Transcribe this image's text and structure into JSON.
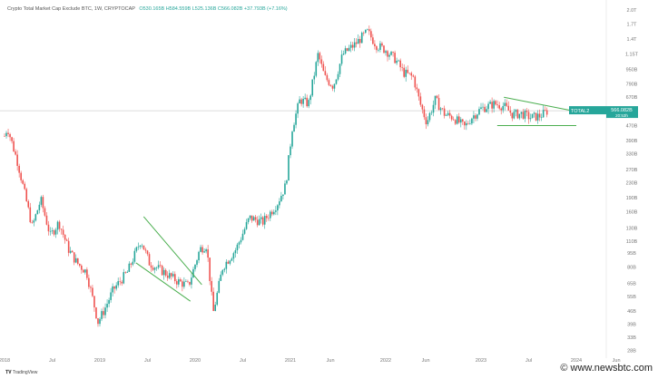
{
  "header": {
    "title": "Crypto Total Market Cap Exclude BTC, 1W, CRYPTOCAP",
    "ohlc": "O530.165B H584.559B L525.136B C566.082B +37.793B (+7.16%)"
  },
  "price_badge": {
    "symbol": "TOTAL2",
    "value": "566.082B",
    "sub": "20:53h"
  },
  "branding": {
    "tradingview": "TradingView",
    "watermark": "© www.newsbtc.com"
  },
  "colors": {
    "up": "#26a69a",
    "down": "#ef5350",
    "trendline": "#4caf50",
    "badge": "#26a69a"
  },
  "chart_data": {
    "type": "candlestick",
    "scale": "log",
    "title": "Crypto Total Market Cap Exclude BTC, 1W, CRYPTOCAP",
    "ylim_billions": [
      28,
      2000
    ],
    "y_ticks": [
      {
        "label": "2.0T",
        "v": 2000
      },
      {
        "label": "1.7T",
        "v": 1680
      },
      {
        "label": "1.4T",
        "v": 1390
      },
      {
        "label": "1.15T",
        "v": 1150
      },
      {
        "label": "950B",
        "v": 950
      },
      {
        "label": "790B",
        "v": 790
      },
      {
        "label": "670B",
        "v": 670
      },
      {
        "label": "470B",
        "v": 470
      },
      {
        "label": "390B",
        "v": 390
      },
      {
        "label": "330B",
        "v": 330
      },
      {
        "label": "270B",
        "v": 270
      },
      {
        "label": "230B",
        "v": 230
      },
      {
        "label": "190B",
        "v": 190
      },
      {
        "label": "160B",
        "v": 160
      },
      {
        "label": "130B",
        "v": 130
      },
      {
        "label": "110B",
        "v": 110
      },
      {
        "label": "95B",
        "v": 95
      },
      {
        "label": "80B",
        "v": 80
      },
      {
        "label": "65B",
        "v": 65
      },
      {
        "label": "55B",
        "v": 55
      },
      {
        "label": "46B",
        "v": 46
      },
      {
        "label": "39B",
        "v": 39
      },
      {
        "label": "33B",
        "v": 33
      },
      {
        "label": "28B",
        "v": 28
      }
    ],
    "x_ticks": [
      {
        "label": "2018",
        "t": 2018.0
      },
      {
        "label": "Jul",
        "t": 2018.5
      },
      {
        "label": "2019",
        "t": 2019.0
      },
      {
        "label": "Jul",
        "t": 2019.5
      },
      {
        "label": "2020",
        "t": 2020.0
      },
      {
        "label": "Jul",
        "t": 2020.5
      },
      {
        "label": "2021",
        "t": 2021.0
      },
      {
        "label": "Jun",
        "t": 2021.42
      },
      {
        "label": "2022",
        "t": 2022.0
      },
      {
        "label": "Jun",
        "t": 2022.42
      },
      {
        "label": "2023",
        "t": 2023.0
      },
      {
        "label": "Jul",
        "t": 2023.5
      },
      {
        "label": "2024",
        "t": 2024.0
      },
      {
        "label": "Jun",
        "t": 2024.42
      }
    ],
    "closes_billions": [
      [
        2018.0,
        412
      ],
      [
        2018.03,
        460
      ],
      [
        2018.14,
        293
      ],
      [
        2018.29,
        132
      ],
      [
        2018.38,
        186
      ],
      [
        2018.48,
        118
      ],
      [
        2018.57,
        140
      ],
      [
        2018.67,
        100
      ],
      [
        2018.76,
        84
      ],
      [
        2018.86,
        75
      ],
      [
        2018.95,
        47
      ],
      [
        2018.98,
        40
      ],
      [
        2019.05,
        47
      ],
      [
        2019.14,
        60
      ],
      [
        2019.29,
        75
      ],
      [
        2019.43,
        112
      ],
      [
        2019.52,
        84
      ],
      [
        2019.67,
        75
      ],
      [
        2019.81,
        67
      ],
      [
        2019.93,
        63
      ],
      [
        2020.05,
        100
      ],
      [
        2020.12,
        105
      ],
      [
        2020.19,
        45
      ],
      [
        2020.29,
        80
      ],
      [
        2020.43,
        100
      ],
      [
        2020.57,
        148
      ],
      [
        2020.71,
        140
      ],
      [
        2020.86,
        176
      ],
      [
        2020.95,
        222
      ],
      [
        2021.02,
        460
      ],
      [
        2021.1,
        650
      ],
      [
        2021.19,
        617
      ],
      [
        2021.29,
        1150
      ],
      [
        2021.36,
        860
      ],
      [
        2021.45,
        770
      ],
      [
        2021.55,
        1150
      ],
      [
        2021.67,
        1290
      ],
      [
        2021.76,
        1440
      ],
      [
        2021.81,
        1520
      ],
      [
        2021.9,
        1290
      ],
      [
        2022.0,
        1210
      ],
      [
        2022.1,
        1080
      ],
      [
        2022.19,
        910
      ],
      [
        2022.29,
        860
      ],
      [
        2022.36,
        620
      ],
      [
        2022.43,
        490
      ],
      [
        2022.52,
        650
      ],
      [
        2022.62,
        540
      ],
      [
        2022.71,
        520
      ],
      [
        2022.83,
        460
      ],
      [
        2022.9,
        520
      ],
      [
        2023.0,
        580
      ],
      [
        2023.14,
        617
      ],
      [
        2023.24,
        600
      ],
      [
        2023.33,
        540
      ],
      [
        2023.43,
        545
      ],
      [
        2023.52,
        520
      ],
      [
        2023.62,
        530
      ],
      [
        2023.7,
        566
      ]
    ],
    "trendlines": [
      {
        "from": [
          2023.24,
          670
        ],
        "to": [
          2024.0,
          560
        ]
      },
      {
        "from": [
          2023.17,
          470
        ],
        "to": [
          2024.0,
          470
        ]
      },
      {
        "from": [
          2019.46,
          150
        ],
        "to": [
          2020.07,
          64
        ]
      },
      {
        "from": [
          2019.38,
          84
        ],
        "to": [
          2019.95,
          52
        ]
      }
    ],
    "last_price_billions": 566
  }
}
